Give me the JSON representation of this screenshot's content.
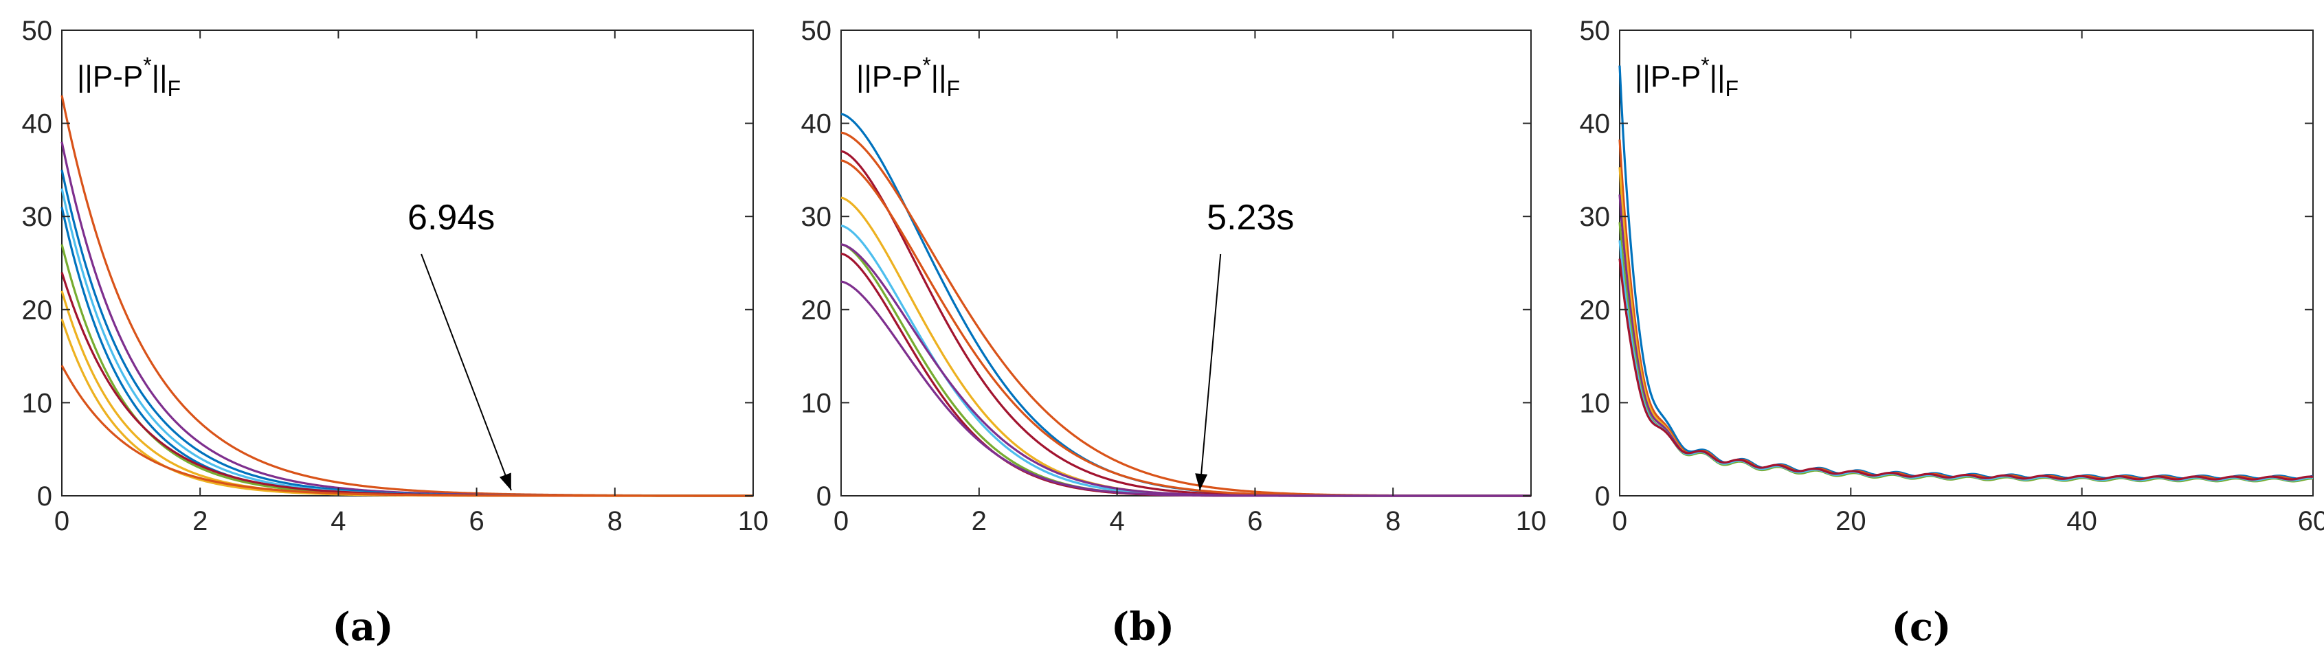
{
  "chart_data": [
    {
      "type": "line",
      "panel": "(a)",
      "ylabel": "||P-P*||F",
      "xlim": [
        0,
        10
      ],
      "ylim": [
        0,
        50
      ],
      "x_ticks": [
        0,
        2,
        4,
        6,
        8,
        10
      ],
      "y_ticks": [
        0,
        10,
        20,
        30,
        40,
        50
      ],
      "grid": false,
      "annotation": {
        "text": "6.94s",
        "x": 6.5,
        "y": 0
      },
      "series": [
        {
          "color": "#D95319",
          "y0": 43,
          "decay": 0.85
        },
        {
          "color": "#7E2F8E",
          "y0": 38,
          "decay": 0.95
        },
        {
          "color": "#0072BD",
          "y0": 35,
          "decay": 1.0
        },
        {
          "color": "#4DBEEE",
          "y0": 33,
          "decay": 1.05
        },
        {
          "color": "#0072BD",
          "y0": 31,
          "decay": 1.1
        },
        {
          "color": "#77AC30",
          "y0": 27,
          "decay": 1.1
        },
        {
          "color": "#A2142F",
          "y0": 24,
          "decay": 1.0
        },
        {
          "color": "#EDB120",
          "y0": 22,
          "decay": 1.15
        },
        {
          "color": "#EDB120",
          "y0": 19,
          "decay": 1.2
        },
        {
          "color": "#D95319",
          "y0": 14,
          "decay": 1.0
        }
      ]
    },
    {
      "type": "line",
      "panel": "(b)",
      "ylabel": "||P-P*||F",
      "xlim": [
        0,
        10
      ],
      "ylim": [
        0,
        50
      ],
      "x_ticks": [
        0,
        2,
        4,
        6,
        8,
        10
      ],
      "y_ticks": [
        0,
        10,
        20,
        30,
        40,
        50
      ],
      "grid": false,
      "annotation": {
        "text": "5.23s",
        "x": 5.2,
        "y": 0
      },
      "series": [
        {
          "color": "#0072BD",
          "y0": 41,
          "decay": 0.7
        },
        {
          "color": "#D95319",
          "y0": 39,
          "decay": 0.62
        },
        {
          "color": "#A2142F",
          "y0": 37,
          "decay": 0.75
        },
        {
          "color": "#D95319",
          "y0": 36,
          "decay": 0.68
        },
        {
          "color": "#EDB120",
          "y0": 32,
          "decay": 0.82
        },
        {
          "color": "#4DBEEE",
          "y0": 29,
          "decay": 0.85
        },
        {
          "color": "#77AC30",
          "y0": 27,
          "decay": 0.9
        },
        {
          "color": "#A2142F",
          "y0": 26,
          "decay": 0.92
        },
        {
          "color": "#7E2F8E",
          "y0": 23,
          "decay": 0.88
        },
        {
          "color": "#7E2F8E",
          "y0": 27,
          "decay": 0.8
        }
      ]
    },
    {
      "type": "line",
      "panel": "(c)",
      "ylabel": "||P-P*||F",
      "xlim": [
        0,
        60
      ],
      "ylim": [
        0,
        50
      ],
      "x_ticks": [
        0,
        20,
        40,
        60
      ],
      "y_ticks": [
        0,
        10,
        20,
        30,
        40,
        50
      ],
      "grid": false,
      "series": [
        {
          "color": "#0072BD",
          "y0": 41,
          "end": 2.0
        },
        {
          "color": "#D95319",
          "y0": 33,
          "end": 1.9
        },
        {
          "color": "#EDB120",
          "y0": 30,
          "end": 1.8
        },
        {
          "color": "#7E2F8E",
          "y0": 27,
          "end": 1.8
        },
        {
          "color": "#77AC30",
          "y0": 24,
          "end": 1.7
        },
        {
          "color": "#4DBEEE",
          "y0": 22,
          "end": 1.8
        },
        {
          "color": "#A2142F",
          "y0": 20,
          "end": 1.9
        }
      ]
    }
  ],
  "captions": [
    "(a)",
    "(b)",
    "(c)"
  ]
}
